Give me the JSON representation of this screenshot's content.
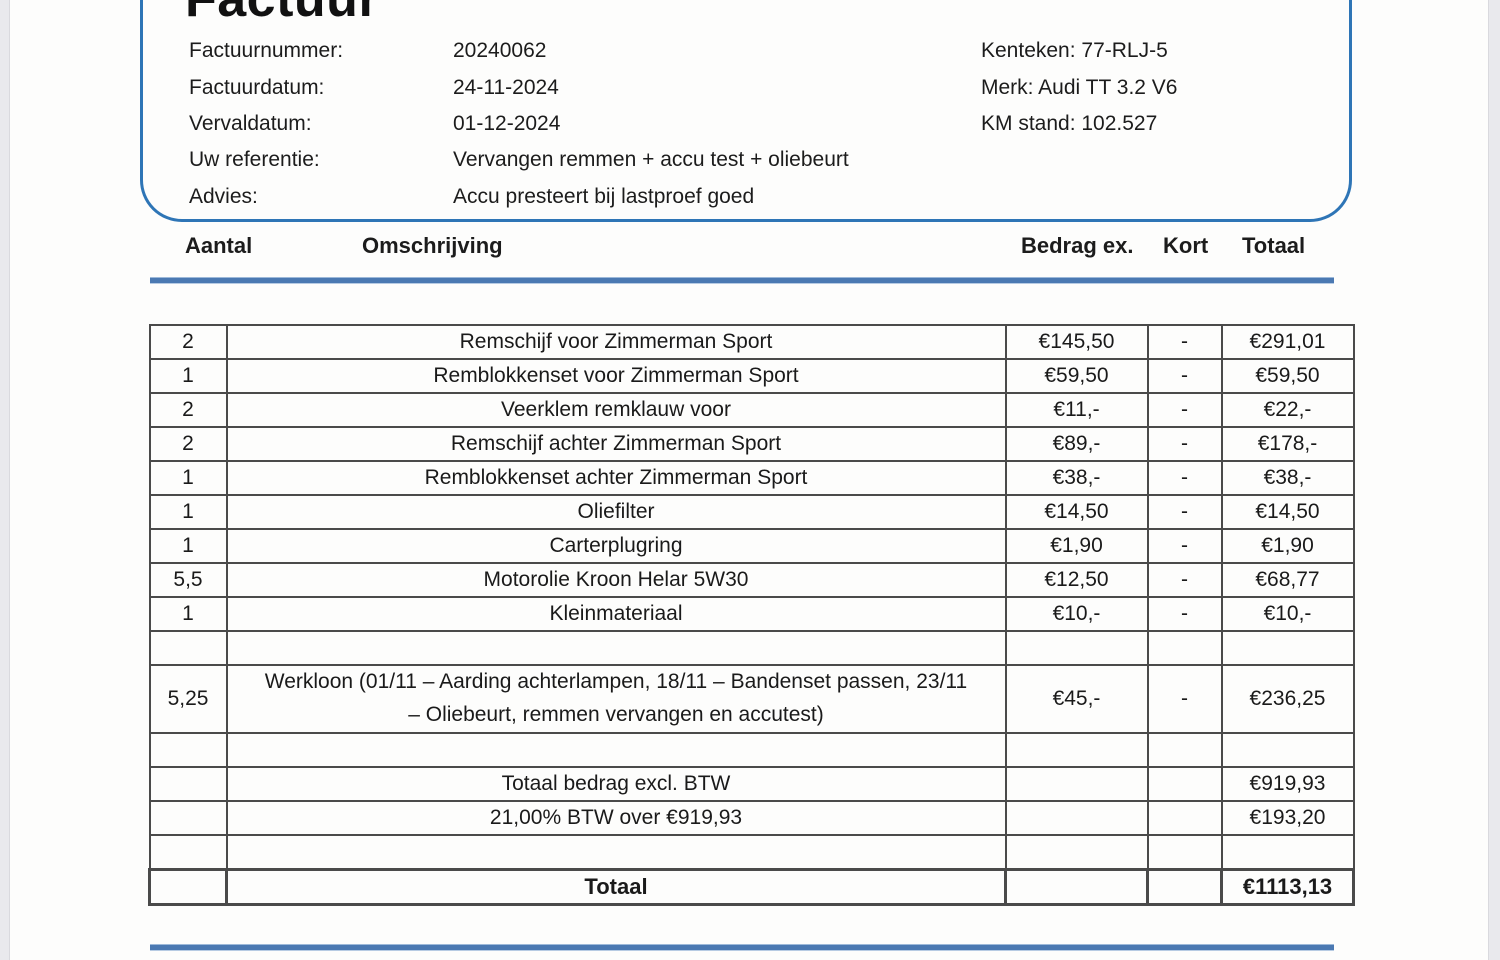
{
  "invoice": {
    "title": "Factuur",
    "meta": [
      {
        "label": "Factuurnummer:",
        "value": "20240062"
      },
      {
        "label": "Factuurdatum:",
        "value": "24-11-2024"
      },
      {
        "label": "Vervaldatum:",
        "value": "01-12-2024"
      },
      {
        "label": "Uw referentie:",
        "value": "Vervangen remmen + accu test + oliebeurt"
      },
      {
        "label": "Advies:",
        "value": "Accu presteert bij lastproef goed"
      }
    ],
    "vehicle": [
      {
        "text": "Kenteken: 77-RLJ-5"
      },
      {
        "text": "Merk: Audi TT 3.2 V6"
      },
      {
        "text": "KM stand: 102.527"
      }
    ],
    "table": {
      "headers": [
        "Aantal",
        "Omschrijving",
        "Bedrag ex.",
        "Kort",
        "Totaal"
      ],
      "rows": [
        {
          "cells": [
            "2",
            "Remschijf voor Zimmerman Sport",
            "€145,50",
            "-",
            "€291,01"
          ]
        },
        {
          "cells": [
            "1",
            "Remblokkenset voor Zimmerman Sport",
            "€59,50",
            "-",
            "€59,50"
          ]
        },
        {
          "cells": [
            "2",
            "Veerklem remklauw voor",
            "€11,-",
            "-",
            "€22,-"
          ]
        },
        {
          "cells": [
            "2",
            "Remschijf achter Zimmerman Sport",
            "€89,-",
            "-",
            "€178,-"
          ]
        },
        {
          "cells": [
            "1",
            "Remblokkenset achter Zimmerman Sport",
            "€38,-",
            "-",
            "€38,-"
          ]
        },
        {
          "cells": [
            "1",
            "Oliefilter",
            "€14,50",
            "-",
            "€14,50"
          ]
        },
        {
          "cells": [
            "1",
            "Carterplugring",
            "€1,90",
            "-",
            "€1,90"
          ]
        },
        {
          "cells": [
            "5,5",
            "Motorolie Kroon Helar 5W30",
            "€12,50",
            "-",
            "€68,77"
          ]
        },
        {
          "cells": [
            "1",
            "Kleinmateriaal",
            "€10,-",
            "-",
            "€10,-"
          ]
        },
        {
          "cells": [
            "",
            "",
            "",
            "",
            ""
          ],
          "empty": true
        },
        {
          "cells": [
            "5,25",
            "Werkloon (01/11 – Aarding achterlampen, 18/11 – Bandenset passen, 23/11 – Oliebeurt, remmen vervangen en accutest)",
            "€45,-",
            "-",
            "€236,25"
          ],
          "tall": true
        },
        {
          "cells": [
            "",
            "",
            "",
            "",
            ""
          ],
          "empty": true
        },
        {
          "cells": [
            "",
            "Totaal bedrag excl. BTW",
            "",
            "",
            "€919,93"
          ]
        },
        {
          "cells": [
            "",
            "21,00% BTW over €919,93",
            "",
            "",
            "€193,20"
          ]
        },
        {
          "cells": [
            "",
            "",
            "",
            "",
            ""
          ],
          "empty": true
        },
        {
          "cells": [
            "",
            "Totaal",
            "",
            "",
            "€1113,13"
          ],
          "bold": true
        }
      ]
    }
  },
  "colors": {
    "accent_blue": "#2e75b6",
    "rule_blue": "#4b79b2",
    "table_border": "#4a4a4a"
  }
}
